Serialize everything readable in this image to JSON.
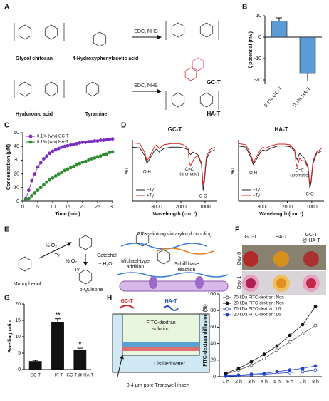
{
  "panel_labels": [
    "A",
    "B",
    "C",
    "D",
    "E",
    "F",
    "G",
    "H"
  ],
  "scheme_a": {
    "glycol_chitosan": "Glycol chitosan",
    "hpa": "4-Hydroxyphenylacetic acid",
    "reagent_top": "EDC, NHS",
    "product_top": "GC-T",
    "hyaluronic_acid": "Hyaluronic acid",
    "tyramine": "Tyramine",
    "reagent_bottom": "EDC, NHS",
    "product_bottom": "HA-T"
  },
  "scheme_e": {
    "monophenol": "Monophenol",
    "catechol": "Catechol",
    "quinone": "o-Quinone",
    "oxygen_1": "½ O₂",
    "enzyme_1": "Ty",
    "oxygen_2": "½ O₂",
    "enzyme_2": "Ty",
    "water": "+ H₂O",
    "coupling": "Cross-linking via aryloxyl coupling",
    "michael_1": "Michael-type",
    "michael_2": "addition",
    "schiff_1": "Schiff base",
    "schiff_2": "reaction"
  },
  "photos_f": {
    "columns": [
      "GC-T",
      "HA-T",
      "GC-T",
      "@ HA-T"
    ],
    "rows": [
      "Day 0",
      "Day 1"
    ]
  },
  "scheme_h": {
    "gc": "GC-T",
    "ha": "HA-T",
    "solution_1": "FITC-dextran",
    "solution_2": "solution",
    "water": "Distilled water",
    "insert": "0.4-μm pore Transwell insert"
  },
  "chart_data": [
    {
      "type": "bar",
      "ylabel": "ζ potential (mV)",
      "categories": [
        "0.1% GC-T",
        "0.1% HA-T"
      ],
      "values": [
        7.5,
        -17
      ],
      "errors": [
        1.5,
        3.5
      ],
      "color": "#5b9bd5",
      "ylim": [
        -22,
        10
      ],
      "yticks": [
        -20,
        -10,
        0,
        10
      ]
    },
    {
      "type": "line",
      "xlabel": "Time (min)",
      "ylabel": "Concentration (μM)",
      "x": [
        1,
        2,
        3,
        4,
        5,
        6,
        7,
        8,
        9,
        10,
        11,
        12,
        13,
        14,
        15,
        16,
        17,
        18,
        19,
        20,
        21,
        22,
        23,
        24,
        25,
        26,
        27,
        28,
        29,
        30
      ],
      "series": [
        {
          "name": "0.1% (w/v) GC-T",
          "color": "#7b2fbf",
          "filled": true,
          "values": [
            2,
            8,
            15,
            20,
            25,
            28,
            31,
            33,
            35,
            36.5,
            37.5,
            38.5,
            39.5,
            40,
            40.5,
            41,
            41.5,
            42,
            42.5,
            43,
            43,
            43.5,
            43.5,
            44,
            44,
            44.5,
            44.5,
            45,
            45,
            45.5
          ]
        },
        {
          "name": "0.1% (w/v) HA-T",
          "color": "#2e8b2e",
          "filled": true,
          "values": [
            1,
            2,
            4,
            6,
            8,
            10,
            12,
            14,
            15.5,
            17,
            18.5,
            20,
            21,
            22.5,
            23.5,
            24.5,
            25.5,
            26.5,
            27.5,
            28.5,
            29,
            30,
            31,
            31.5,
            32.5,
            33,
            34,
            34.5,
            35.5,
            36
          ]
        }
      ],
      "xlim": [
        0,
        30
      ],
      "xticks": [
        0,
        5,
        10,
        15,
        20,
        25,
        30
      ],
      "ylim": [
        0,
        50
      ],
      "yticks": [
        0,
        10,
        20,
        30,
        40,
        50
      ],
      "legend": "upper left",
      "marker": "circle"
    },
    {
      "type": "line",
      "title": "GC-T",
      "xlabel": "Wavelength (cm⁻¹)",
      "ylabel": "%T",
      "x": [
        4000,
        3700,
        3500,
        3400,
        3300,
        3100,
        3000,
        2900,
        2700,
        2400,
        2100,
        1900,
        1700,
        1650,
        1600,
        1500,
        1400,
        1300,
        1150,
        1080,
        1030,
        950,
        800,
        600
      ],
      "series": [
        {
          "name": "−Ty",
          "color": "#222222",
          "values": [
            88,
            87,
            75,
            62,
            68,
            82,
            85,
            80,
            86,
            88,
            88,
            87,
            84,
            78,
            76,
            80,
            78,
            76,
            62,
            18,
            32,
            68,
            80,
            84
          ]
        },
        {
          "name": "+Ty",
          "color": "#e02020",
          "values": [
            95,
            94,
            80,
            66,
            72,
            88,
            92,
            86,
            92,
            94,
            94,
            92,
            86,
            62,
            58,
            66,
            72,
            74,
            60,
            26,
            38,
            72,
            84,
            88
          ]
        }
      ],
      "xlim": [
        4000,
        500
      ],
      "xticks": [
        3000,
        2000,
        1000
      ],
      "ylim": [
        0,
        100
      ],
      "legend": "lower left",
      "annotations": [
        {
          "text": "O-H",
          "x": 3400,
          "y": 48
        },
        {
          "text": "C=C",
          "x": 1650,
          "y": 52
        },
        {
          "text": "(aromatic)",
          "x": 1650,
          "y": 44
        },
        {
          "text": "C-O",
          "x": 1080,
          "y": 8
        }
      ]
    },
    {
      "type": "line",
      "title": "HA-T",
      "xlabel": "Wavelength (cm⁻¹)",
      "ylabel": "%T",
      "x": [
        4000,
        3700,
        3500,
        3400,
        3300,
        3100,
        3000,
        2900,
        2700,
        2400,
        2100,
        1900,
        1700,
        1650,
        1600,
        1500,
        1400,
        1300,
        1150,
        1080,
        1030,
        950,
        800,
        600
      ],
      "series": [
        {
          "name": "−Ty",
          "color": "#222222",
          "values": [
            90,
            88,
            72,
            60,
            66,
            80,
            84,
            82,
            86,
            90,
            90,
            89,
            82,
            72,
            68,
            78,
            74,
            70,
            56,
            22,
            30,
            62,
            78,
            82
          ]
        },
        {
          "name": "+Ty",
          "color": "#e02020",
          "values": [
            94,
            92,
            76,
            64,
            70,
            84,
            88,
            86,
            90,
            93,
            93,
            92,
            84,
            62,
            56,
            70,
            66,
            66,
            54,
            26,
            34,
            66,
            80,
            86
          ]
        }
      ],
      "xlim": [
        4000,
        500
      ],
      "xticks": [
        3000,
        2000,
        1000
      ],
      "ylim": [
        0,
        100
      ],
      "legend": "lower left",
      "annotations": [
        {
          "text": "O-H",
          "x": 3400,
          "y": 46
        },
        {
          "text": "C=C",
          "x": 1500,
          "y": 50
        },
        {
          "text": "(aromatic)",
          "x": 1500,
          "y": 42
        },
        {
          "text": "C-O",
          "x": 1080,
          "y": 12
        }
      ]
    },
    {
      "type": "bar",
      "ylabel": "Swelling ratio",
      "categories": [
        "GC-T",
        "HA-T",
        "GC-T @ HA-T"
      ],
      "values": [
        2.5,
        14.5,
        6
      ],
      "errors": [
        0.3,
        1,
        0.5
      ],
      "significance": [
        null,
        "**",
        "*"
      ],
      "color": "#111111",
      "ylim": [
        0,
        20
      ],
      "yticks": [
        0,
        5,
        10,
        15,
        20
      ]
    },
    {
      "type": "line",
      "ylabel": "FITC-dextran diffusion (%)",
      "categories": [
        "1 h",
        "2 h",
        "3 h",
        "4 h",
        "5 h",
        "6 h",
        "7 h",
        "8 h"
      ],
      "series": [
        {
          "name": "70-kDa FITC-dextran: Non",
          "color": "#555555",
          "filled": false,
          "values": [
            3,
            8,
            14,
            22,
            32,
            42,
            52,
            62
          ]
        },
        {
          "name": "20-kDa FITC-dextran: Non",
          "color": "#111111",
          "filled": true,
          "values": [
            4,
            10,
            18,
            27,
            37,
            50,
            63,
            85
          ]
        },
        {
          "name": "70-kDa FITC-dextran: L6",
          "color": "#2040d0",
          "filled": false,
          "values": [
            0.5,
            1,
            2,
            3,
            4,
            5,
            6,
            8
          ]
        },
        {
          "name": "20-kDa FITC-dextran: L6",
          "color": "#2040d0",
          "filled": true,
          "values": [
            1,
            2,
            3,
            4,
            6,
            8,
            10,
            13
          ]
        }
      ],
      "ylim": [
        0,
        100
      ],
      "yticks": [
        0,
        20,
        40,
        60,
        80,
        100
      ],
      "legend": "upper left",
      "marker": "circle"
    }
  ]
}
